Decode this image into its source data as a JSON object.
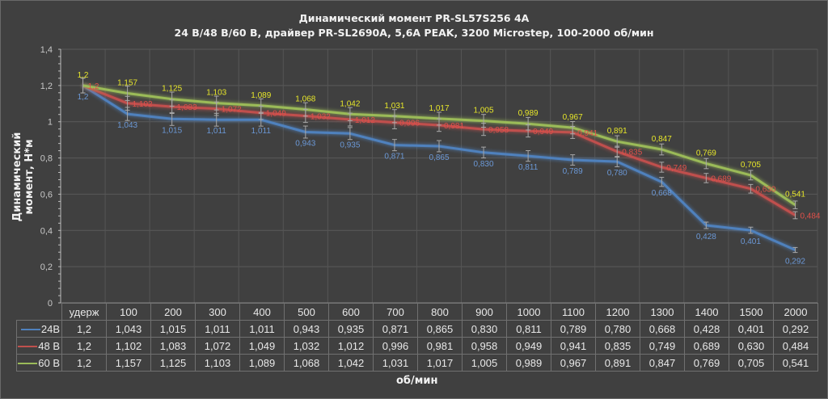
{
  "chart_data": {
    "type": "line",
    "title": "Динамический момент PR-SL57S256 4A",
    "subtitle": "24 В/48 В/60 В, драйвер PR-SL2690A, 5,6A PEAK, 3200 Microstep, 100-2000 об/мин",
    "xlabel": "об/мин",
    "ylabel": "Динамический момент, Н*м",
    "ylim": [
      0,
      1.4
    ],
    "yticks": [
      "0",
      "0,2",
      "0,4",
      "0,6",
      "0,8",
      "1",
      "1,2",
      "1,4"
    ],
    "ytick_values": [
      0,
      0.2,
      0.4,
      0.6,
      0.8,
      1.0,
      1.2,
      1.4
    ],
    "grid": true,
    "error_bars": true,
    "legend": "data-table",
    "categories": [
      "удерж",
      "100",
      "200",
      "300",
      "400",
      "500",
      "600",
      "700",
      "800",
      "900",
      "1000",
      "1100",
      "1200",
      "1300",
      "1400",
      "1500",
      "2000"
    ],
    "series": [
      {
        "name": "24В",
        "color": "#4f81bd",
        "label_color": "#6b98d6",
        "label_pos": "below",
        "values": [
          1.2,
          1.043,
          1.015,
          1.011,
          1.011,
          0.943,
          0.935,
          0.871,
          0.865,
          0.83,
          0.811,
          0.789,
          0.78,
          0.668,
          0.428,
          0.401,
          0.292
        ],
        "labels": [
          "1,2",
          "1,043",
          "1,015",
          "1,011",
          "1,011",
          "0,943",
          "0,935",
          "0,871",
          "0,865",
          "0,830",
          "0,811",
          "0,789",
          "0,780",
          "0,668",
          "0,428",
          "0,401",
          "0,292"
        ]
      },
      {
        "name": "48 В",
        "color": "#c0504d",
        "label_color": "#e0504a",
        "label_pos": "right",
        "values": [
          1.2,
          1.102,
          1.083,
          1.072,
          1.049,
          1.032,
          1.012,
          0.996,
          0.981,
          0.958,
          0.949,
          0.941,
          0.835,
          0.749,
          0.689,
          0.63,
          0.484
        ],
        "labels": [
          "1,2",
          "1,102",
          "1,083",
          "1,072",
          "1,049",
          "1,032",
          "1,012",
          "0,996",
          "0,981",
          "0,958",
          "0,949",
          "0,941",
          "0,835",
          "0,749",
          "0,689",
          "0,630",
          "0,484"
        ]
      },
      {
        "name": "60 В",
        "color": "#9bbb59",
        "label_color": "#e6e62a",
        "label_pos": "above",
        "values": [
          1.2,
          1.157,
          1.125,
          1.103,
          1.089,
          1.068,
          1.042,
          1.031,
          1.017,
          1.005,
          0.989,
          0.967,
          0.891,
          0.847,
          0.769,
          0.705,
          0.541
        ],
        "labels": [
          "1,2",
          "1,157",
          "1,125",
          "1,103",
          "1,089",
          "1,068",
          "1,042",
          "1,031",
          "1,017",
          "1,005",
          "0,989",
          "0,967",
          "0,891",
          "0,847",
          "0,769",
          "0,705",
          "0,541"
        ]
      }
    ]
  }
}
